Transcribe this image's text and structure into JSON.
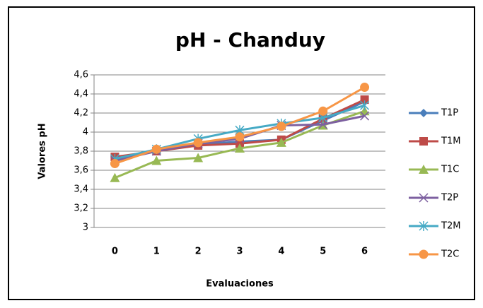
{
  "chart_data": {
    "type": "line",
    "title": "pH - Chanduy",
    "x_label": "Evaluaciones",
    "y_label": "Valores pH",
    "categories": [
      "0",
      "1",
      "2",
      "3",
      "4",
      "5",
      "6"
    ],
    "series": [
      {
        "name": "T1P",
        "color": "#4a7ebb",
        "marker": "diamond",
        "values": [
          3.72,
          3.81,
          3.87,
          3.9,
          3.92,
          4.12,
          4.32
        ]
      },
      {
        "name": "T1M",
        "color": "#be4b48",
        "marker": "square",
        "values": [
          3.74,
          3.8,
          3.86,
          3.88,
          3.92,
          4.14,
          4.34
        ]
      },
      {
        "name": "T1C",
        "color": "#98b954",
        "marker": "triangle",
        "values": [
          3.52,
          3.7,
          3.73,
          3.83,
          3.89,
          4.07,
          4.22
        ]
      },
      {
        "name": "T2P",
        "color": "#7d60a0",
        "marker": "x",
        "values": [
          3.7,
          3.8,
          3.88,
          3.93,
          4.07,
          4.08,
          4.17
        ]
      },
      {
        "name": "T2M",
        "color": "#46aac5",
        "marker": "star",
        "values": [
          3.72,
          3.82,
          3.93,
          4.02,
          4.09,
          4.15,
          4.28
        ]
      },
      {
        "name": "T2C",
        "color": "#f79646",
        "marker": "circle",
        "values": [
          3.67,
          3.82,
          3.89,
          3.95,
          4.06,
          4.22,
          4.47
        ]
      }
    ],
    "ylim": [
      3,
      4.6
    ],
    "yticks": [
      3,
      {
        "value": 3.2,
        "label": "3,2"
      },
      {
        "value": 3.4,
        "label": "3,4"
      },
      {
        "value": 3.6,
        "label": "3,6"
      },
      {
        "value": 3.8,
        "label": "3,8"
      },
      4,
      {
        "value": 4.2,
        "label": "4,2"
      },
      {
        "value": 4.4,
        "label": "4,4"
      },
      {
        "value": 4.6,
        "label": "4,6"
      }
    ],
    "grid": true,
    "legend": "right"
  }
}
